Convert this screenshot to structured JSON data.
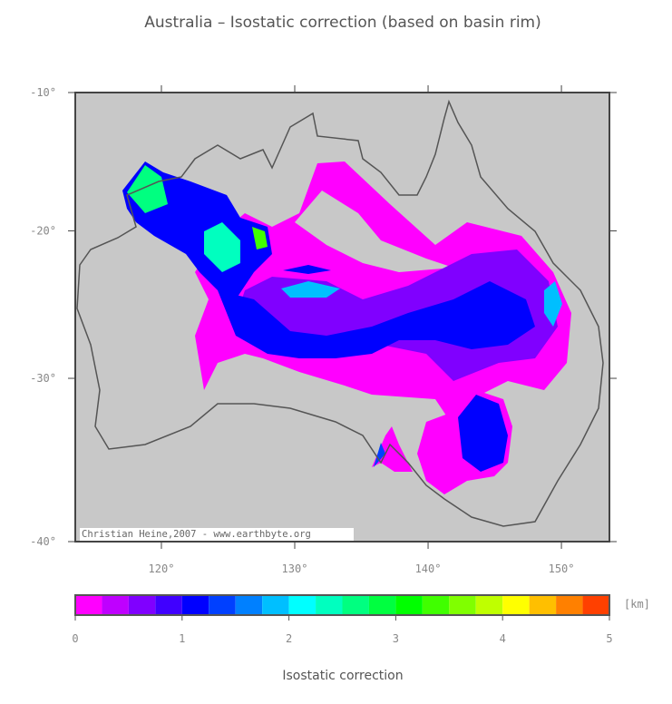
{
  "chart_data": {
    "type": "map",
    "title": "Australia – Isostatic correction (based on basin rim)",
    "projection": "mercator",
    "xlim": [
      113.54,
      153.6
    ],
    "ylim": [
      -40,
      -10
    ],
    "xticks": [
      {
        "value": 120,
        "label": "120°"
      },
      {
        "value": 130,
        "label": "130°"
      },
      {
        "value": 140,
        "label": "140°"
      },
      {
        "value": 150,
        "label": "150°"
      }
    ],
    "yticks": [
      {
        "value": -10,
        "label": "-10°"
      },
      {
        "value": -20,
        "label": "-20°"
      },
      {
        "value": -30,
        "label": "-30°"
      },
      {
        "value": -40,
        "label": "-40°"
      }
    ],
    "credit": "Christian Heine,2007 - www.earthbyte.org",
    "colorbar": {
      "label": "Isostatic correction",
      "unit": "[km]",
      "clim": [
        0,
        5
      ],
      "ticks": [
        0,
        1,
        2,
        3,
        4,
        5
      ],
      "bins": [
        0,
        0.25,
        0.5,
        0.75,
        1,
        1.25,
        1.5,
        1.75,
        2,
        2.25,
        2.5,
        2.75,
        3,
        3.25,
        3.5,
        3.75,
        4,
        4.25,
        4.5,
        4.75,
        5
      ],
      "colors": [
        "#ff00ff",
        "#bf00ff",
        "#8000ff",
        "#4000ff",
        "#0000ff",
        "#0040ff",
        "#0080ff",
        "#00bfff",
        "#00ffff",
        "#00ffbf",
        "#00ff80",
        "#00ff40",
        "#00ff00",
        "#40ff00",
        "#80ff00",
        "#bfff00",
        "#ffff00",
        "#ffbf00",
        "#ff8000",
        "#ff4000"
      ]
    }
  }
}
